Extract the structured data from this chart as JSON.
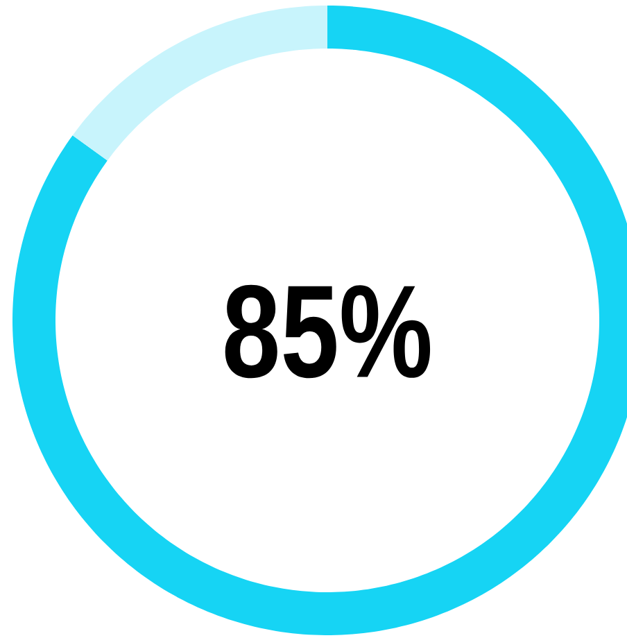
{
  "chart_data": {
    "type": "donut",
    "categories": [
      null,
      null
    ],
    "values": [
      85,
      15
    ],
    "colors": [
      "#16d4f4",
      "#c8f4fc"
    ],
    "value_labels": [
      "85%",
      null
    ]
  }
}
